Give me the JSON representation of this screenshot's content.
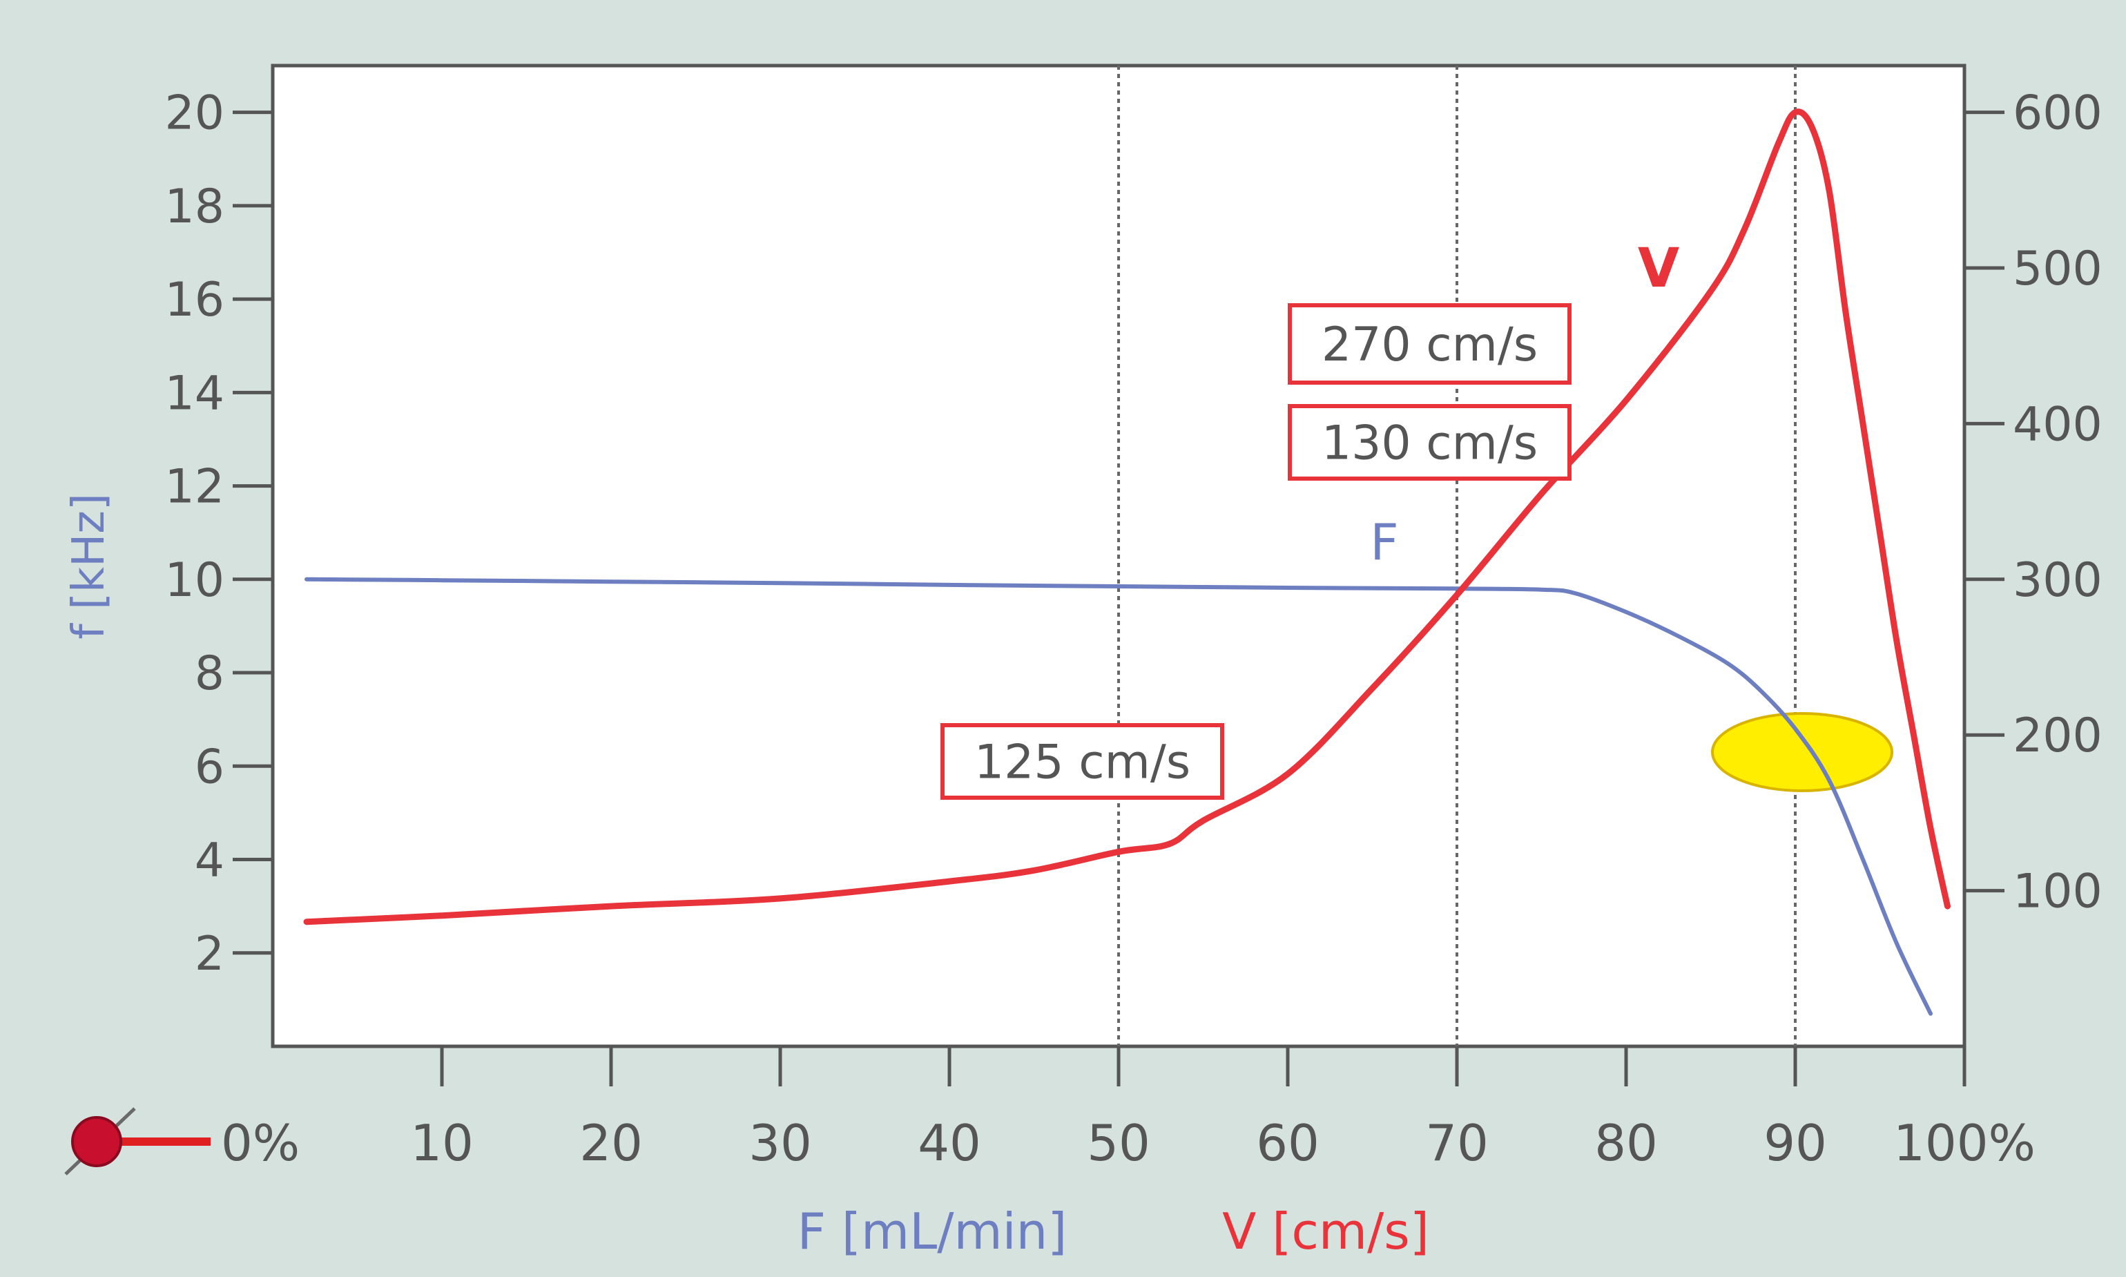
{
  "chart_data": {
    "type": "line",
    "xlabel": "",
    "x_tick_labels": [
      "0%",
      "10",
      "20",
      "30",
      "40",
      "50",
      "60",
      "70",
      "80",
      "90",
      "100%"
    ],
    "x_ticks": [
      0,
      10,
      20,
      30,
      40,
      50,
      60,
      70,
      80,
      90,
      100
    ],
    "xlim": [
      0,
      100
    ],
    "left_axis": {
      "label": "f [kHz]",
      "ylim": [
        0,
        21
      ],
      "ticks": [
        2,
        4,
        6,
        8,
        10,
        12,
        14,
        16,
        18,
        20
      ],
      "tick_labels": [
        "2",
        "4",
        "6",
        "8",
        "10",
        "12",
        "14",
        "16",
        "18",
        "20"
      ]
    },
    "right_axis": {
      "label": "",
      "ylim": [
        0,
        630
      ],
      "ticks": [
        100,
        200,
        300,
        400,
        500,
        600
      ],
      "tick_labels": [
        "100",
        "200",
        "300",
        "400",
        "500",
        "600"
      ]
    },
    "grid": "off",
    "vertical_markers": [
      50,
      70,
      90
    ],
    "series": [
      {
        "name": "F",
        "axis": "left",
        "color": "#6d7fc0",
        "x": [
          2,
          10,
          20,
          30,
          40,
          50,
          60,
          70,
          75,
          77,
          80,
          83,
          86,
          88,
          90,
          92,
          94,
          96,
          98
        ],
        "y": [
          10.0,
          9.98,
          9.95,
          9.92,
          9.88,
          9.85,
          9.82,
          9.8,
          9.78,
          9.7,
          9.3,
          8.8,
          8.2,
          7.6,
          6.8,
          5.7,
          4.0,
          2.2,
          0.7
        ]
      },
      {
        "name": "V",
        "axis": "right",
        "color": "#e8333b",
        "x": [
          2,
          10,
          20,
          30,
          40,
          45,
          50,
          53,
          55,
          60,
          65,
          70,
          75,
          80,
          85,
          87,
          89,
          90,
          91,
          92,
          93,
          94,
          95,
          96,
          97,
          98,
          99
        ],
        "y": [
          80,
          84,
          90,
          95,
          106,
          113,
          125,
          130,
          145,
          175,
          230,
          290,
          355,
          415,
          485,
          525,
          580,
          600,
          590,
          550,
          470,
          400,
          330,
          260,
          200,
          140,
          90
        ]
      }
    ],
    "annotations": [
      {
        "text": "125 cm/s",
        "x": 48,
        "y_right": 225,
        "color": "#e8333b"
      },
      {
        "text": "270 cm/s",
        "x": 68,
        "y_right": 510,
        "color": "#e8333b"
      },
      {
        "text": "130 cm/s",
        "x": 68,
        "y_right": 450,
        "color": "#e8333b"
      }
    ],
    "highlight": {
      "shape": "ellipse",
      "color": "#ffee00",
      "x": 90,
      "y_left": 6.3
    },
    "series_labels": [
      {
        "text": "F",
        "color": "#6d7fc0"
      },
      {
        "text": "V",
        "color": "#e8333b"
      }
    ],
    "bottom_labels": [
      {
        "text": "F [mL/min]",
        "color": "#6d7fc0"
      },
      {
        "text": "V [cm/s]",
        "color": "#e8333b"
      }
    ],
    "background_color": "#d6e2de",
    "plot_background_color": "#ffffff"
  }
}
